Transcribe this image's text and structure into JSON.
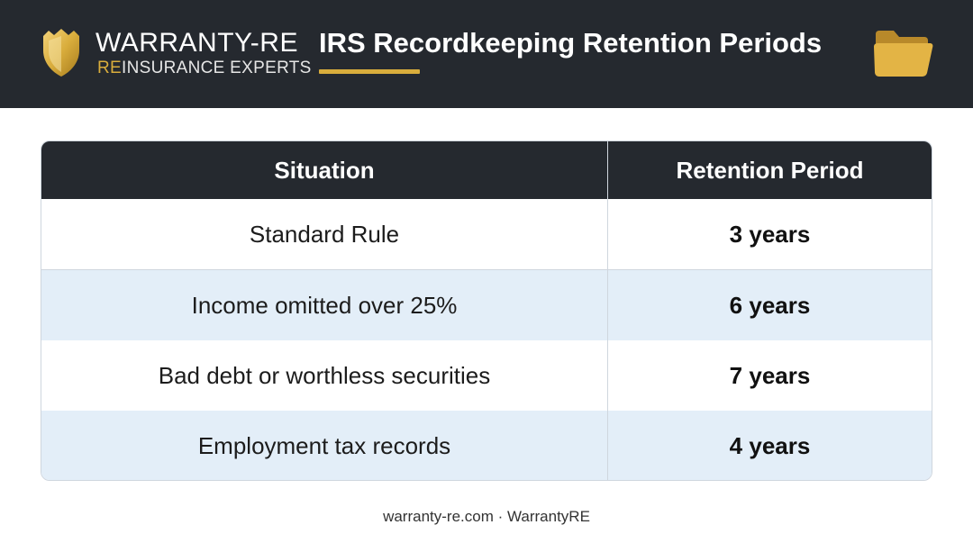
{
  "brand": {
    "name": "WARRANTY-RE",
    "subtitle_accent": "RE",
    "subtitle_rest": "INSURANCE EXPERTS",
    "logo_icon": "shield-crest-icon",
    "accent_color": "#d9ad3c"
  },
  "header": {
    "title": "IRS Recordkeeping Retention Periods",
    "folder_icon": "folder-icon",
    "background_color": "#25292f"
  },
  "table": {
    "headers": [
      "Situation",
      "Retention Period"
    ],
    "rows": [
      {
        "situation": "Standard Rule",
        "period": "3 years"
      },
      {
        "situation": "Income omitted over 25%",
        "period": "6 years"
      },
      {
        "situation": "Bad debt or worthless securities",
        "period": "7 years"
      },
      {
        "situation": "Employment tax records",
        "period": "4 years"
      }
    ],
    "alt_row_color": "#e3eef8"
  },
  "footer": {
    "text": "warranty-re.com · WarrantyRE"
  }
}
